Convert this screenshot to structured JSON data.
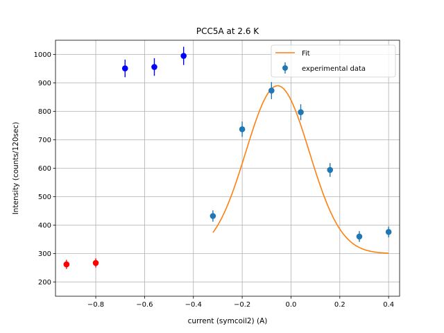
{
  "chart_data": {
    "type": "scatter",
    "title": "PCC5A at 2.6 K",
    "xlabel": "current (symcoil2) (A)",
    "ylabel": "Intensity (counts/120sec)",
    "xlim": [
      -0.965,
      0.445
    ],
    "ylim": [
      150,
      1050
    ],
    "x_ticks": [
      -0.8,
      -0.6,
      -0.4,
      -0.2,
      0.0,
      0.2,
      0.4
    ],
    "x_tick_labels": [
      "−0.8",
      "−0.6",
      "−0.4",
      "−0.2",
      "0.0",
      "0.2",
      "0.4"
    ],
    "y_ticks": [
      200,
      300,
      400,
      500,
      600,
      700,
      800,
      900,
      1000
    ],
    "y_tick_labels": [
      "200",
      "300",
      "400",
      "500",
      "600",
      "700",
      "800",
      "900",
      "1000"
    ],
    "grid": true,
    "legend_placement": "top-right",
    "legend": [
      {
        "label": "Fit",
        "kind": "line",
        "color": "#ff7f0e"
      },
      {
        "label": "experimental data",
        "kind": "errorbar",
        "color": "#1f77b4"
      }
    ],
    "experimental_data": {
      "color": "#1f77b4",
      "x": [
        -0.32,
        -0.2,
        -0.08,
        0.04,
        0.16,
        0.28,
        0.4
      ],
      "y": [
        432,
        737,
        873,
        797,
        594,
        360,
        376
      ],
      "yerr": [
        20,
        27,
        30,
        28,
        24,
        19,
        19
      ]
    },
    "extra_points_blue": {
      "color": "#0000ff",
      "x": [
        -0.68,
        -0.56,
        -0.44
      ],
      "y": [
        951,
        956,
        995
      ],
      "yerr": [
        31,
        31,
        32
      ]
    },
    "extra_points_red": {
      "color": "#ff0000",
      "x": [
        -0.92,
        -0.8
      ],
      "y": [
        262,
        267
      ],
      "yerr": [
        16,
        16
      ]
    },
    "fit": {
      "color": "#ff7f0e",
      "x_range": [
        -0.32,
        0.4
      ],
      "model": "gaussian_plus_linear",
      "params": {
        "amplitude": 590,
        "center": -0.055,
        "sigma": 0.13,
        "offset": 300,
        "slope": 0
      }
    }
  }
}
